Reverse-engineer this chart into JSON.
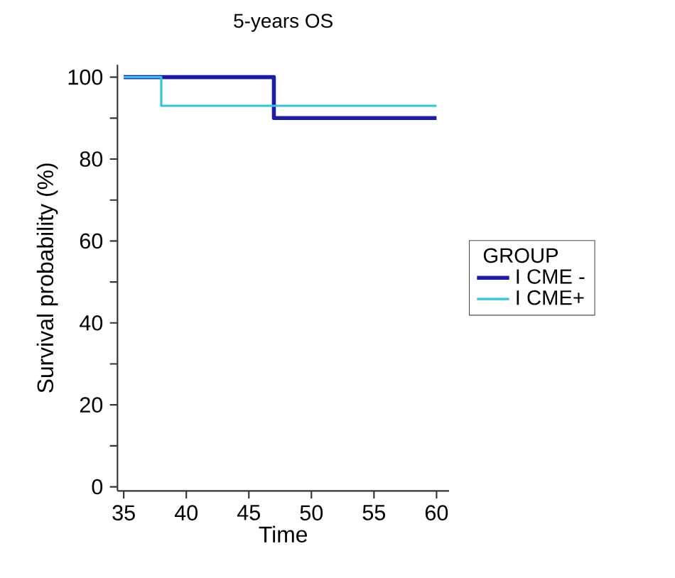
{
  "chart_data": {
    "type": "step",
    "title": "5-years OS",
    "xlabel": "Time",
    "ylabel": "Survival probability (%)",
    "legend_title": "GROUP",
    "series": [
      {
        "name": "I CME -",
        "color": "#1c1ca6",
        "x": [
          35,
          47,
          60
        ],
        "values": [
          100,
          90,
          90
        ]
      },
      {
        "name": "I CME+",
        "color": "#33c3e6",
        "x": [
          35,
          38,
          60
        ],
        "values": [
          100,
          93,
          93
        ]
      }
    ],
    "xlim": [
      34.5,
      61
    ],
    "ylim": [
      -1,
      103
    ],
    "xticks": [
      35,
      40,
      45,
      50,
      55,
      60
    ],
    "yticks": [
      0,
      {
        "value": 10,
        "label": null
      },
      20,
      {
        "value": 30,
        "label": null
      },
      40,
      {
        "value": 50,
        "label": null
      },
      60,
      {
        "value": 70,
        "label": null
      },
      80,
      {
        "value": 90,
        "label": null
      },
      100
    ],
    "grid": false,
    "legend": "right",
    "marker": "none",
    "line_style": "solid"
  }
}
